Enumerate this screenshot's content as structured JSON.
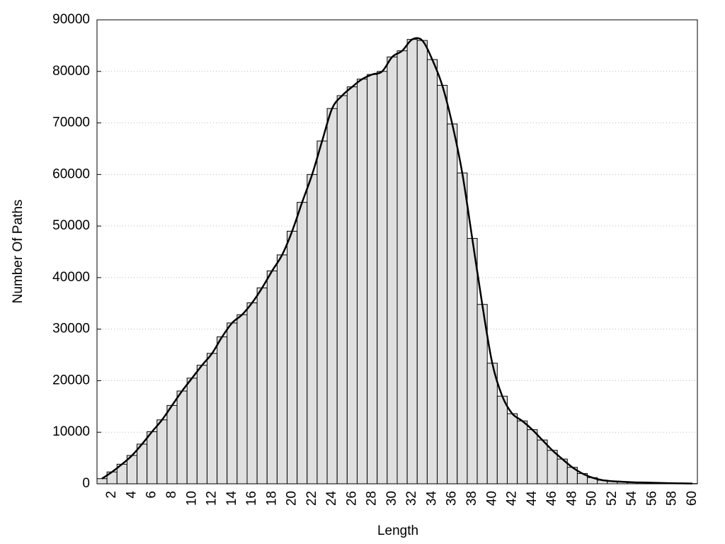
{
  "chart_data": {
    "type": "bar",
    "xlabel": "Length",
    "ylabel": "Number Of Paths",
    "categories": [
      null,
      "2",
      null,
      "4",
      null,
      "6",
      null,
      "8",
      null,
      "10",
      null,
      "12",
      null,
      "14",
      null,
      "16",
      null,
      "18",
      null,
      "20",
      null,
      "22",
      null,
      "24",
      null,
      "26",
      null,
      "28",
      null,
      "30",
      null,
      "32",
      null,
      "34",
      null,
      "36",
      null,
      "38",
      null,
      "40",
      null,
      "42",
      null,
      "44",
      null,
      "46",
      null,
      "48",
      null,
      "50",
      null,
      "52",
      null,
      "54",
      null,
      "56",
      null,
      "58",
      null,
      "60"
    ],
    "values": [
      1000,
      2300,
      3800,
      5500,
      7700,
      10100,
      12400,
      15200,
      18000,
      20500,
      23000,
      25300,
      28500,
      31200,
      32800,
      35100,
      38000,
      41300,
      44400,
      49000,
      54600,
      60000,
      66500,
      72800,
      75300,
      77000,
      78500,
      79400,
      80000,
      82800,
      84000,
      86200,
      86000,
      82300,
      77300,
      69800,
      60300,
      47600,
      34800,
      23400,
      17000,
      13600,
      12200,
      10500,
      8500,
      6500,
      4800,
      3200,
      2000,
      1200,
      700,
      500,
      400,
      300,
      250,
      200,
      150,
      100,
      80,
      50
    ],
    "color": "#e0e0e0",
    "curve": true,
    "curve_color": "#000000",
    "ylim": [
      0,
      90000
    ],
    "yticks": [
      0,
      10000,
      20000,
      30000,
      40000,
      50000,
      60000,
      70000,
      80000,
      90000
    ],
    "grid": true
  }
}
